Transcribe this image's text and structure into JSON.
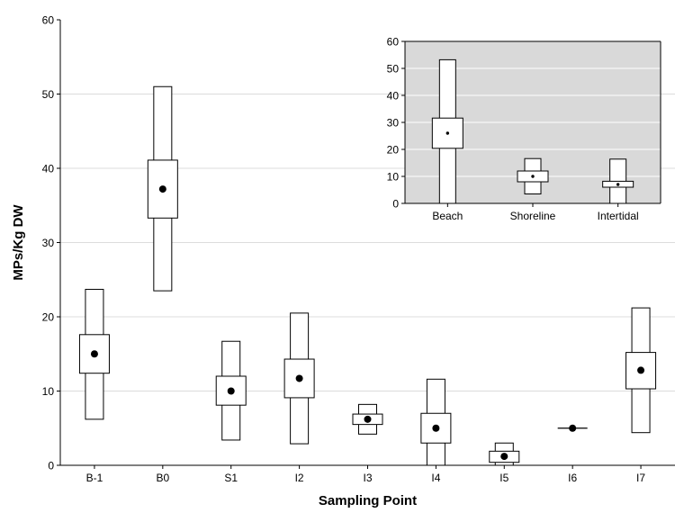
{
  "chart_data": [
    {
      "type": "box",
      "title": "",
      "xlabel": "Sampling Point",
      "ylabel": "MPs/Kg DW",
      "ylim": [
        0,
        60
      ],
      "yticks": [
        0,
        10,
        20,
        30,
        40,
        50,
        60
      ],
      "grid": "horizontal",
      "categories": [
        "B-1",
        "B0",
        "S1",
        "I2",
        "I3",
        "I4",
        "I5",
        "I6",
        "I7"
      ],
      "boxes": [
        {
          "category": "B-1",
          "whisker_low": 6.2,
          "box_low": 12.4,
          "mean": 15.0,
          "box_high": 17.6,
          "whisker_high": 23.7
        },
        {
          "category": "B0",
          "whisker_low": 23.5,
          "box_low": 33.3,
          "mean": 37.2,
          "box_high": 41.1,
          "whisker_high": 51.0
        },
        {
          "category": "S1",
          "whisker_low": 3.4,
          "box_low": 8.1,
          "mean": 10.0,
          "box_high": 12.0,
          "whisker_high": 16.7
        },
        {
          "category": "I2",
          "whisker_low": 2.9,
          "box_low": 9.1,
          "mean": 11.7,
          "box_high": 14.3,
          "whisker_high": 20.5
        },
        {
          "category": "I3",
          "whisker_low": 4.2,
          "box_low": 5.5,
          "mean": 6.2,
          "box_high": 6.9,
          "whisker_high": 8.2
        },
        {
          "category": "I4",
          "whisker_low": 0.0,
          "box_low": 3.0,
          "mean": 5.0,
          "box_high": 7.0,
          "whisker_high": 11.6
        },
        {
          "category": "I5",
          "whisker_low": 0.0,
          "box_low": 0.4,
          "mean": 1.2,
          "box_high": 1.9,
          "whisker_high": 3.0
        },
        {
          "category": "I6",
          "whisker_low": 5.0,
          "box_low": 5.0,
          "mean": 5.0,
          "box_high": 5.0,
          "whisker_high": 5.0
        },
        {
          "category": "I7",
          "whisker_low": 4.4,
          "box_low": 10.3,
          "mean": 12.8,
          "box_high": 15.2,
          "whisker_high": 21.2
        }
      ]
    },
    {
      "type": "box",
      "title": "",
      "xlabel": "",
      "ylabel": "",
      "ylim": [
        0,
        60
      ],
      "yticks": [
        0,
        10,
        20,
        30,
        40,
        50,
        60
      ],
      "grid": "horizontal",
      "background": "#d9d9d9",
      "categories": [
        "Beach",
        "Shoreline",
        "Intertidal"
      ],
      "boxes": [
        {
          "category": "Beach",
          "whisker_low": 0.0,
          "box_low": 20.4,
          "mean": 26.0,
          "box_high": 31.6,
          "whisker_high": 53.2
        },
        {
          "category": "Shoreline",
          "whisker_low": 3.5,
          "box_low": 8.0,
          "mean": 10.0,
          "box_high": 12.0,
          "whisker_high": 16.6
        },
        {
          "category": "Intertidal",
          "whisker_low": 0.0,
          "box_low": 6.0,
          "mean": 7.0,
          "box_high": 8.2,
          "whisker_high": 16.4
        }
      ]
    }
  ]
}
